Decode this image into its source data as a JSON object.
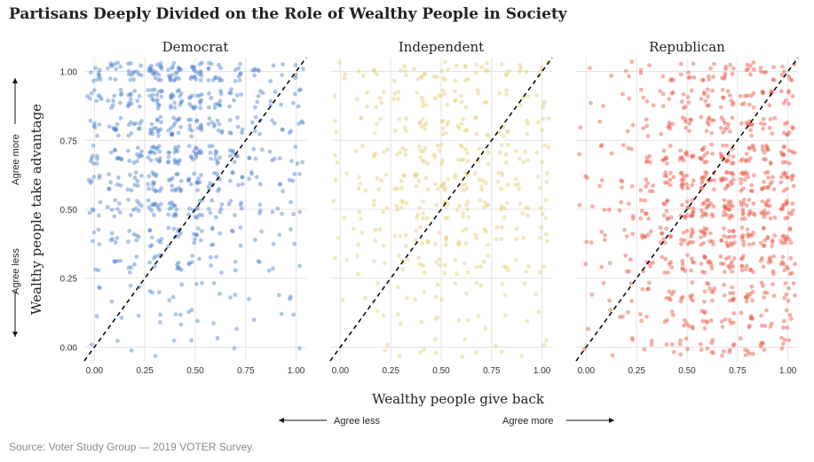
{
  "title": "Partisans Deeply Divided on the Role of Wealthy People in Society",
  "source": "Source: Voter Study Group — 2019 VOTER Survey.",
  "colors": {
    "Democrat": "#4a7fcb",
    "Independent": "#e2cc72",
    "Republican": "#ec503e",
    "grid": "#e4e4e4",
    "diagonal": "#000000"
  },
  "chart_data": {
    "type": "scatter",
    "xlabel": "Wealthy people give back",
    "ylabel": "Wealthy people take advantage",
    "x_ticks": [
      "0.00",
      "0.25",
      "0.50",
      "0.75",
      "1.00"
    ],
    "y_ticks": [
      "0.00",
      "0.25",
      "0.50",
      "0.75",
      "1.00"
    ],
    "xlim": [
      -0.05,
      1.05
    ],
    "ylim": [
      -0.05,
      1.05
    ],
    "grid": true,
    "reference_line": "y = x (dashed)",
    "x_direction": {
      "less": "Agree less",
      "more": "Agree more"
    },
    "y_direction": {
      "less": "Agree less",
      "more": "Agree more"
    },
    "panels": [
      {
        "name": "Democrat",
        "density_by_x": [
          0.35,
          0.45,
          0.55,
          0.85,
          0.8,
          0.75,
          0.55,
          0.35,
          0.25,
          0.2
        ],
        "density_by_y": [
          0.08,
          0.12,
          0.15,
          0.3,
          0.45,
          0.6,
          0.75,
          0.85,
          0.8,
          0.9,
          1.0
        ],
        "y_center": 0.75
      },
      {
        "name": "Independent",
        "density_by_x": [
          0.15,
          0.2,
          0.3,
          0.45,
          0.55,
          0.6,
          0.55,
          0.45,
          0.35,
          0.3
        ],
        "density_by_y": [
          0.1,
          0.1,
          0.2,
          0.3,
          0.45,
          0.55,
          0.65,
          0.55,
          0.5,
          0.45,
          0.5
        ],
        "y_center": 0.62
      },
      {
        "name": "Republican",
        "density_by_x": [
          0.1,
          0.12,
          0.2,
          0.35,
          0.5,
          0.75,
          0.85,
          0.9,
          0.85,
          0.75
        ],
        "density_by_y": [
          0.3,
          0.35,
          0.45,
          0.6,
          0.75,
          0.85,
          0.8,
          0.65,
          0.5,
          0.45,
          0.4
        ],
        "y_center": 0.42
      }
    ]
  }
}
